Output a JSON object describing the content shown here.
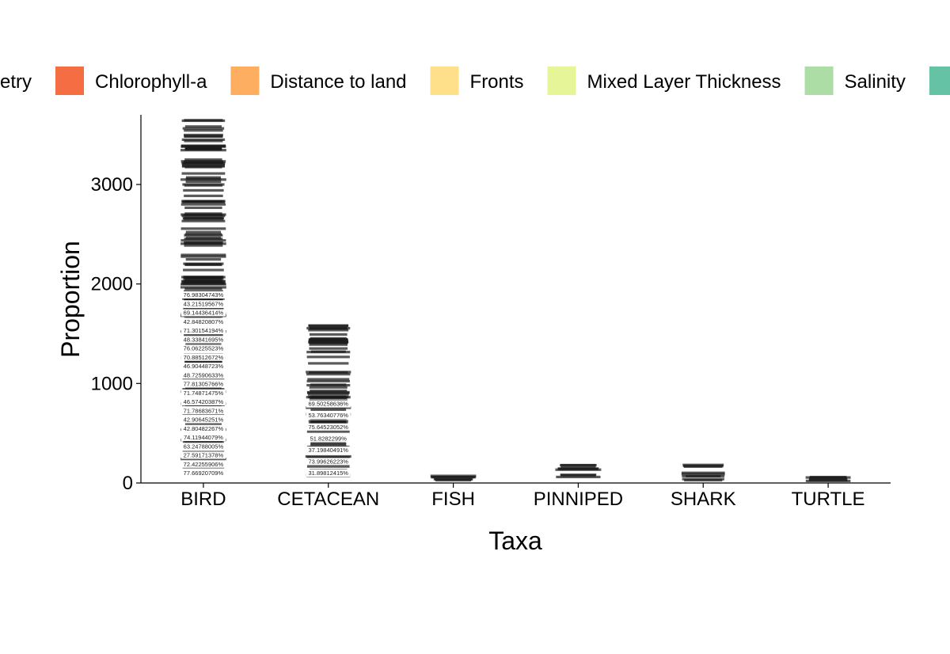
{
  "chart_data": {
    "type": "bar",
    "xlabel": "Taxa",
    "ylabel": "Proportion",
    "ylim": [
      0,
      3700
    ],
    "yticks": [
      0,
      1000,
      2000,
      3000
    ],
    "categories": [
      "BIRD",
      "CETACEAN",
      "FISH",
      "PINNIPED",
      "SHARK",
      "TURTLE"
    ],
    "values": [
      3700,
      1610,
      100,
      210,
      215,
      100
    ],
    "legend": {
      "placement": "top",
      "entries": [
        {
          "label": "etry",
          "color": "#d53e4f"
        },
        {
          "label": "Chlorophyll-a",
          "color": "#f46d43"
        },
        {
          "label": "Distance to land",
          "color": "#fdae61"
        },
        {
          "label": "Fronts",
          "color": "#fee08b"
        },
        {
          "label": "Mixed Layer Thickness",
          "color": "#e6f598"
        },
        {
          "label": "Salinity",
          "color": "#abdda4"
        },
        {
          "label": "",
          "color": "#66c2a5"
        }
      ]
    },
    "data_labels": {
      "BIRD": [
        "76.98304743%",
        "43.21519567%",
        "69.14436414%",
        "42.84820807%",
        "71.30154194%",
        "48.33841695%",
        "76.06225523%",
        "70.88512672%",
        "46.90448723%",
        "48.72590633%",
        "77.81305766%",
        "71.74871475%",
        "46.57420387%",
        "71.78683671%",
        "42.90645251%",
        "42.80482267%",
        "74.11944079%",
        "63.24788005%",
        "27.59171378%",
        "72.42255906%",
        "77.66920709%"
      ],
      "CETACEAN": [
        "69.50258636%",
        "53.76340776%",
        "75.64523052%",
        "51.8282299%",
        "37.19840491%",
        "73.99626223%",
        "31.89812415%"
      ],
      "FISH": [],
      "PINNIPED": [],
      "SHARK": [],
      "TURTLE": []
    }
  }
}
